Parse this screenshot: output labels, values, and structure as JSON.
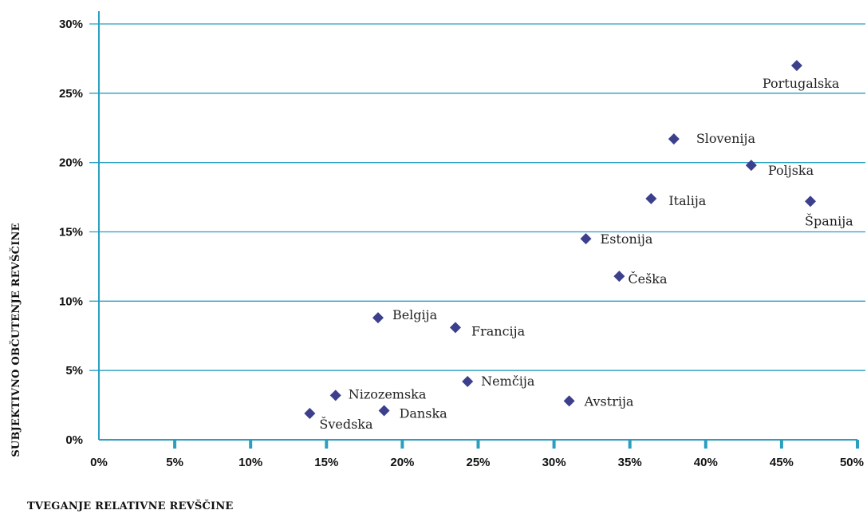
{
  "chart_data": {
    "type": "scatter",
    "xlabel": "TVEGANJE RELATIVNE REVŠČINE",
    "ylabel": "SUBJEKTIVNO OBČUTENJE REVŠČINE",
    "xlim": [
      0,
      50
    ],
    "ylim": [
      0,
      30
    ],
    "x_ticks": [
      "0%",
      "5%",
      "10%",
      "15%",
      "20%",
      "25%",
      "30%",
      "35%",
      "40%",
      "45%",
      "50%"
    ],
    "y_ticks": [
      "0%",
      "5%",
      "10%",
      "15%",
      "20%",
      "25%",
      "30%"
    ],
    "grid": "horizontal",
    "colors": {
      "marker": "#3b3f8c",
      "grid": "#2a9fc0",
      "axis": "#2a9fc0"
    },
    "points": [
      {
        "label": "Portugalska",
        "x": 46.0,
        "y": 27.0
      },
      {
        "label": "Slovenija",
        "x": 37.9,
        "y": 21.7
      },
      {
        "label": "Poljska",
        "x": 43.0,
        "y": 19.8
      },
      {
        "label": "Italija",
        "x": 36.4,
        "y": 17.4
      },
      {
        "label": "Španija",
        "x": 46.9,
        "y": 17.2
      },
      {
        "label": "Estonija",
        "x": 32.1,
        "y": 14.5
      },
      {
        "label": "Češka",
        "x": 34.3,
        "y": 11.8
      },
      {
        "label": "Belgija",
        "x": 18.4,
        "y": 8.8
      },
      {
        "label": "Francija",
        "x": 23.5,
        "y": 8.1
      },
      {
        "label": "Nemčija",
        "x": 24.3,
        "y": 4.2
      },
      {
        "label": "Nizozemska",
        "x": 15.6,
        "y": 3.2
      },
      {
        "label": "Avstrija",
        "x": 31.0,
        "y": 2.8
      },
      {
        "label": "Danska",
        "x": 18.8,
        "y": 2.1
      },
      {
        "label": "Švedska",
        "x": 13.9,
        "y": 1.9
      }
    ]
  }
}
